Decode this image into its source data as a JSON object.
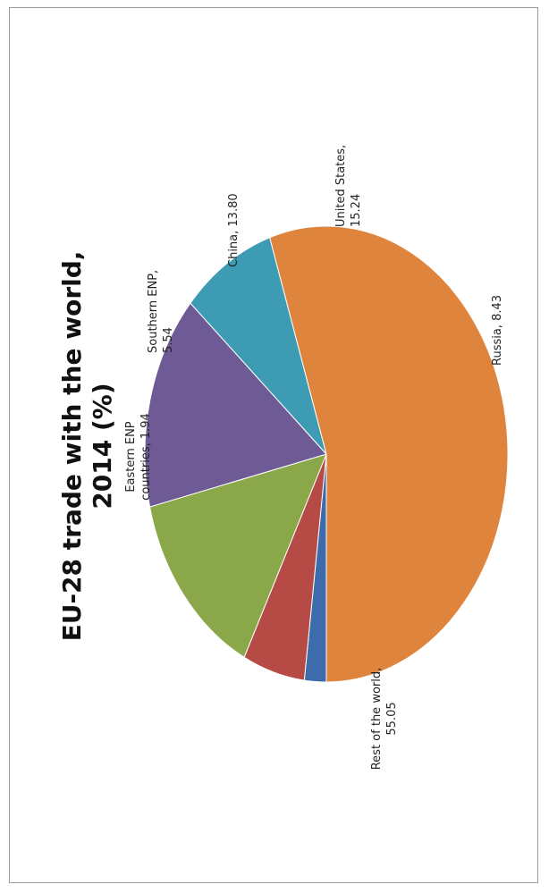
{
  "chart_data": {
    "type": "pie",
    "title_lines": [
      "EU-28 trade with the world,",
      "2014 (%)"
    ],
    "slices": [
      {
        "name": "Eastern ENP countries",
        "value": 1.94,
        "color": "#3d6bab",
        "label_lines": [
          "Eastern ENP",
          "countries, 1.94"
        ]
      },
      {
        "name": "Southern ENP",
        "value": 5.54,
        "color": "#b64a44",
        "label_lines": [
          "Southern ENP,",
          "5.54"
        ]
      },
      {
        "name": "China",
        "value": 13.8,
        "color": "#8aa74a",
        "label_lines": [
          "China, 13.80"
        ]
      },
      {
        "name": "United States",
        "value": 15.24,
        "color": "#6e5a94",
        "label_lines": [
          "United States,",
          "15.24"
        ]
      },
      {
        "name": "Russia",
        "value": 8.43,
        "color": "#3d9bb4",
        "label_lines": [
          "Russia, 8.43"
        ]
      },
      {
        "name": "Rest of the world",
        "value": 55.05,
        "color": "#de843c",
        "label_lines": [
          "Rest of the world,",
          "55.05"
        ]
      }
    ]
  }
}
